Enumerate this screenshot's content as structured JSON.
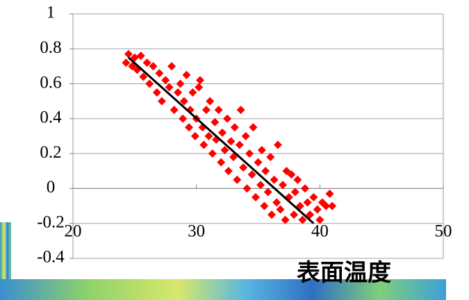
{
  "chart_data": {
    "type": "scatter",
    "x_label": "表面温度",
    "xlim": [
      20,
      50
    ],
    "xticks": [
      20,
      30,
      40,
      50
    ],
    "ylim": [
      -0.4,
      1
    ],
    "yticks": [
      -0.4,
      -0.2,
      0,
      0.2,
      0.4,
      0.6,
      0.8,
      1
    ],
    "grid": true,
    "marker": "diamond",
    "series": [
      {
        "color": "#ff0000",
        "x": [
          24.3,
          24.5,
          24.8,
          25.0,
          25.2,
          25.5,
          25.7,
          26.0,
          26.2,
          26.5,
          26.8,
          27.0,
          27.2,
          27.5,
          27.8,
          28.0,
          28.2,
          28.5,
          28.7,
          28.9,
          29.0,
          29.2,
          29.4,
          29.5,
          29.7,
          29.9,
          30.0,
          30.2,
          30.3,
          30.5,
          30.6,
          30.8,
          31.0,
          31.1,
          31.3,
          31.5,
          31.6,
          31.8,
          32.0,
          32.1,
          32.3,
          32.5,
          32.6,
          32.8,
          33.0,
          33.1,
          33.3,
          33.5,
          33.6,
          33.8,
          34.0,
          34.1,
          34.3,
          34.5,
          34.6,
          34.8,
          35.0,
          35.2,
          35.3,
          35.5,
          35.6,
          35.8,
          36.0,
          36.1,
          36.3,
          36.5,
          36.6,
          36.8,
          37.0,
          37.2,
          37.3,
          37.5,
          37.7,
          37.9,
          38.0,
          38.2,
          38.4,
          38.6,
          38.8,
          39.0,
          39.2,
          39.5,
          39.8,
          40.0,
          40.2,
          40.5,
          40.8,
          41.0
        ],
        "values": [
          0.72,
          0.77,
          0.7,
          0.75,
          0.68,
          0.76,
          0.64,
          0.72,
          0.6,
          0.7,
          0.55,
          0.66,
          0.5,
          0.62,
          0.58,
          0.7,
          0.45,
          0.55,
          0.6,
          0.4,
          0.5,
          0.65,
          0.35,
          0.45,
          0.55,
          0.3,
          0.4,
          0.58,
          0.62,
          0.35,
          0.25,
          0.45,
          0.3,
          0.5,
          0.2,
          0.38,
          0.28,
          0.45,
          0.15,
          0.32,
          0.22,
          0.4,
          0.1,
          0.27,
          0.18,
          0.35,
          0.05,
          0.25,
          0.45,
          0.12,
          0.3,
          0,
          0.2,
          0.08,
          0.35,
          -0.05,
          0.15,
          0.02,
          0.22,
          -0.1,
          0.1,
          -0.02,
          0.18,
          -0.15,
          0.05,
          -0.08,
          0.25,
          -0.12,
          0.02,
          -0.18,
          0.1,
          -0.05,
          0.08,
          -0.15,
          -0.02,
          0.05,
          -0.1,
          -0.18,
          0,
          -0.08,
          -0.15,
          -0.05,
          -0.12,
          -0.18,
          -0.08,
          -0.1,
          -0.03,
          -0.1
        ]
      }
    ],
    "trend_line": {
      "color": "#000000",
      "x": [
        24.5,
        39.5
      ],
      "values": [
        0.75,
        -0.2
      ]
    }
  }
}
